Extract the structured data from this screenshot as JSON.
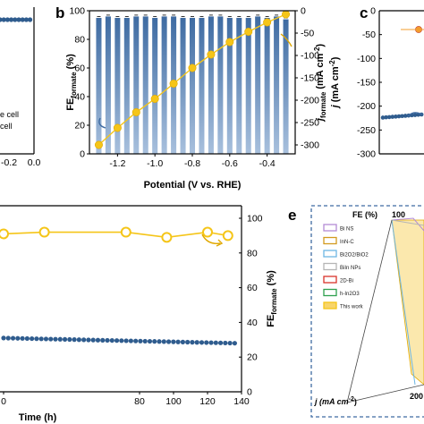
{
  "panel_letters": [
    "b",
    "c",
    "e"
  ],
  "colors": {
    "bar": "#3E6BA2",
    "bar_light": "#A8C0DD",
    "gold": "#F5C518",
    "gold_dark": "#E0A800",
    "navy": "#2F5C8E",
    "grid_box": "#3E6BA2"
  },
  "chart_data": [
    {
      "id": "a_fragment",
      "type": "line",
      "xticks": [
        "-0.2",
        "0.0"
      ],
      "text_fragments": [
        "e cell",
        "cell"
      ]
    },
    {
      "id": "b",
      "type": "bar",
      "title": "",
      "xlabel": "Potential (V vs. RHE)",
      "ylabel_left_main": "FE",
      "ylabel_left_sub": "formate",
      "ylabel_left_unit": " (%)",
      "ylabel_right_main": "j",
      "ylabel_right_sub": "formate",
      "ylabel_right_unit": " (mA cm",
      "ylabel_right_sup": "-2",
      "ylabel_right_close": ")",
      "xlim": [
        -1.35,
        -0.25
      ],
      "xticks": [
        "-1.2",
        "-1.0",
        "-0.8",
        "-0.6",
        "-0.4"
      ],
      "xtick_values": [
        -1.2,
        -1.0,
        -0.8,
        -0.6,
        -0.4
      ],
      "ylim_left": [
        0,
        100
      ],
      "yticks_left": [
        "0",
        "20",
        "40",
        "60",
        "80",
        "100"
      ],
      "ylim_right": [
        -320,
        0
      ],
      "yticks_right": [
        "0",
        "-50",
        "-100",
        "-150",
        "-200",
        "-250",
        "-300"
      ],
      "bars": {
        "x": [
          -1.3,
          -1.25,
          -1.2,
          -1.15,
          -1.1,
          -1.05,
          -1.0,
          -0.95,
          -0.9,
          -0.85,
          -0.8,
          -0.75,
          -0.7,
          -0.65,
          -0.6,
          -0.55,
          -0.5,
          -0.45,
          -0.4,
          -0.35,
          -0.3
        ],
        "values": [
          95,
          96,
          95,
          95,
          96,
          96,
          95,
          96,
          96,
          95,
          95,
          95,
          96,
          96,
          95,
          95,
          95,
          96,
          95,
          96,
          94
        ]
      },
      "line": {
        "x": [
          -1.3,
          -1.2,
          -1.1,
          -1.0,
          -0.9,
          -0.8,
          -0.7,
          -0.6,
          -0.5,
          -0.4,
          -0.3
        ],
        "values": [
          -300,
          -262,
          -227,
          -197,
          -163,
          -128,
          -98,
          -70,
          -47,
          -26,
          -8
        ]
      }
    },
    {
      "id": "c_fragment",
      "type": "line",
      "ylabel_main": "j",
      "ylabel_unit": " (mA cm",
      "ylabel_sup": "-2",
      "ylabel_close": ")",
      "ylim": [
        -300,
        0
      ],
      "yticks": [
        "0",
        "-50",
        "-100",
        "-150",
        "-200",
        "-250",
        "-300"
      ]
    },
    {
      "id": "d",
      "type": "line",
      "xlabel": "Time (h)",
      "ylabel_right_main": "FE",
      "ylabel_right_sub": "formate",
      "ylabel_right_unit": " (%)",
      "xlim": [
        0,
        140
      ],
      "xticks": [
        "0",
        "80",
        "100",
        "120",
        "140"
      ],
      "xtick_values": [
        0,
        80,
        100,
        120,
        140
      ],
      "ylim_right": [
        0,
        100
      ],
      "yticks_right": [
        "0",
        "20",
        "40",
        "60",
        "80",
        "100"
      ],
      "fe_series": {
        "x": [
          0,
          24,
          72,
          96,
          120,
          132
        ],
        "values": [
          91,
          92,
          92,
          89,
          92,
          90
        ]
      },
      "j_series": {
        "x_start": 0,
        "x_end": 136,
        "count": 50,
        "value_start": 31,
        "value_end": 28
      }
    },
    {
      "id": "e",
      "type": "radar",
      "axis_fe": "FE (%)",
      "axis_fe_max": "100",
      "axis_j": "j (mA cm",
      "axis_j_sup": "-2",
      "axis_j_close": ")",
      "axis_right_fragment": "200",
      "legend": [
        {
          "label": "Bi NS",
          "color": "#B38BD6"
        },
        {
          "label": "InN-C",
          "color": "#D39A1E"
        },
        {
          "label": "Bi2O2/BiO2",
          "color": "#6EB6E3"
        },
        {
          "label": "BiIn NPs",
          "color": "#B5B5B5"
        },
        {
          "label": "2D-Bi",
          "color": "#D9342B"
        },
        {
          "label": "h-In2O3",
          "color": "#2EA04F"
        },
        {
          "label": "This work",
          "color": "#F5C518"
        }
      ]
    }
  ]
}
